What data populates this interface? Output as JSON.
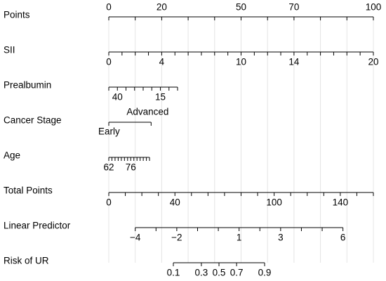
{
  "chart_data": {
    "type": "nomogram",
    "grid": true,
    "rows": [
      {
        "name": "Points",
        "xlim": [
          0,
          100
        ],
        "plim": [
          0,
          100
        ],
        "ticks": [
          0,
          10,
          20,
          30,
          40,
          50,
          60,
          70,
          80,
          90,
          100
        ],
        "tick_labels": [
          0,
          20,
          50,
          70,
          100
        ]
      },
      {
        "name": "SII",
        "xlim": [
          0,
          20
        ],
        "plim": [
          0,
          100
        ],
        "ticks": [
          0,
          1,
          2,
          3,
          4,
          5,
          6,
          7,
          8,
          9,
          10,
          11,
          12,
          13,
          14,
          15,
          16,
          17,
          18,
          19,
          20
        ],
        "tick_labels": [
          0,
          4,
          10,
          14,
          20
        ]
      },
      {
        "name": "Prealbumin",
        "xlim": [
          45,
          5
        ],
        "plim": [
          0,
          26
        ],
        "ticks": [
          45,
          40,
          35,
          30,
          25,
          20,
          15,
          10,
          5
        ],
        "tick_labels": [
          40,
          15
        ]
      },
      {
        "name": "Cancer  Stage",
        "xlim": [
          0,
          1
        ],
        "plim": [
          0,
          16
        ],
        "ticks": [
          0,
          1
        ],
        "tick_labels": [
          {
            "value": 0,
            "label": "Early"
          },
          {
            "value": 1,
            "label": "Advanced"
          }
        ]
      },
      {
        "name": "Age",
        "xlim": [
          62,
          88
        ],
        "plim": [
          0,
          15.4
        ],
        "ticks": [
          62,
          64,
          66,
          68,
          70,
          72,
          74,
          76,
          78,
          80,
          82,
          84,
          86,
          88
        ],
        "tick_labels": [
          62,
          76
        ]
      },
      {
        "name": "Total Points",
        "xlim": [
          0,
          160
        ],
        "plim": [
          0,
          100
        ],
        "ticks": [
          0,
          10,
          20,
          30,
          40,
          50,
          60,
          70,
          80,
          90,
          100,
          110,
          120,
          130,
          140,
          150,
          160
        ],
        "tick_labels": [
          0,
          40,
          100,
          140
        ]
      },
      {
        "name": "Linear Predictor",
        "xlim": [
          -4,
          6
        ],
        "plim": [
          10,
          88.5
        ],
        "ticks": [
          -4,
          -3,
          -2,
          -1,
          0,
          1,
          2,
          3,
          4,
          5,
          6
        ],
        "tick_labels": [
          {
            "value": -4,
            "label": "−4"
          },
          {
            "value": -2,
            "label": "−2"
          },
          1,
          3,
          6
        ]
      },
      {
        "name": "Risk of UR",
        "scale": "logit",
        "xlim": [
          0.1,
          0.9
        ],
        "plim": [
          24.4,
          58.9
        ],
        "ticks": [
          0.1,
          0.3,
          0.5,
          0.7,
          0.9
        ],
        "tick_labels": [
          0.1,
          0.3,
          0.5,
          0.7,
          0.9
        ]
      }
    ]
  }
}
